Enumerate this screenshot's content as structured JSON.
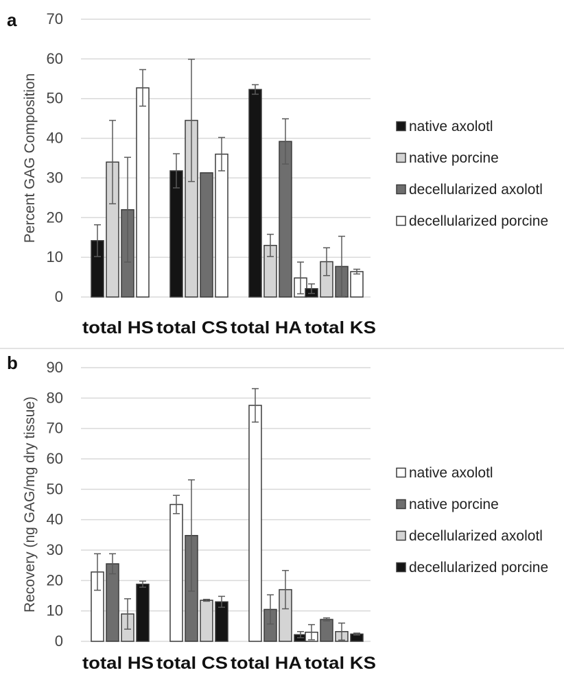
{
  "chart_data": [
    {
      "panel": "a",
      "type": "bar",
      "ylabel": "Percent GAG Composition",
      "xlabel": "",
      "ylim": [
        0,
        70
      ],
      "yticks": [
        0,
        10,
        20,
        30,
        40,
        50,
        60,
        70
      ],
      "grid": true,
      "legend_position": "right",
      "categories": [
        "total HS",
        "total CS",
        "total HA",
        "total KS"
      ],
      "series": [
        {
          "name": "native axolotl",
          "color": "#141414",
          "values": [
            14.2,
            31.8,
            52.3,
            2.1
          ],
          "errors": [
            4.0,
            4.3,
            1.2,
            1.2
          ]
        },
        {
          "name": "native porcine",
          "color": "#d4d4d4",
          "values": [
            34.0,
            44.5,
            13.0,
            8.9
          ],
          "errors": [
            10.5,
            15.4,
            2.8,
            3.5
          ]
        },
        {
          "name": "decellularized axolotl",
          "color": "#6e6e6e",
          "values": [
            22.0,
            31.3,
            39.2,
            7.7
          ],
          "errors": [
            13.2,
            0,
            5.7,
            7.6
          ]
        },
        {
          "name": "decellularized porcine",
          "color": "#ffffff",
          "values": [
            52.7,
            36.0,
            4.8,
            6.4
          ],
          "errors": [
            4.6,
            4.2,
            4.0,
            0.6
          ]
        }
      ]
    },
    {
      "panel": "b",
      "type": "bar",
      "ylabel": "Recovery (ng GAG/mg dry tissue)",
      "xlabel": "",
      "ylim": [
        0,
        90
      ],
      "yticks": [
        0,
        10,
        20,
        30,
        40,
        50,
        60,
        70,
        80,
        90
      ],
      "grid": true,
      "legend_position": "right",
      "categories": [
        "total HS",
        "total CS",
        "total HA",
        "total KS"
      ],
      "series": [
        {
          "name": "native axolotl",
          "color": "#ffffff",
          "values": [
            22.8,
            45.0,
            77.6,
            3.0
          ],
          "errors": [
            6.0,
            3.0,
            5.5,
            2.5
          ]
        },
        {
          "name": "native porcine",
          "color": "#6e6e6e",
          "values": [
            25.5,
            34.8,
            10.5,
            7.2
          ],
          "errors": [
            3.3,
            18.3,
            4.8,
            0.5
          ]
        },
        {
          "name": "decellularized axolotl",
          "color": "#d4d4d4",
          "values": [
            9.0,
            13.5,
            17.0,
            3.2
          ],
          "errors": [
            5.0,
            0.3,
            6.3,
            2.8
          ]
        },
        {
          "name": "decellularized porcine",
          "color": "#141414",
          "values": [
            18.8,
            13.0,
            2.2,
            2.4
          ],
          "errors": [
            1.0,
            1.8,
            1.0,
            0.3
          ]
        }
      ]
    }
  ]
}
